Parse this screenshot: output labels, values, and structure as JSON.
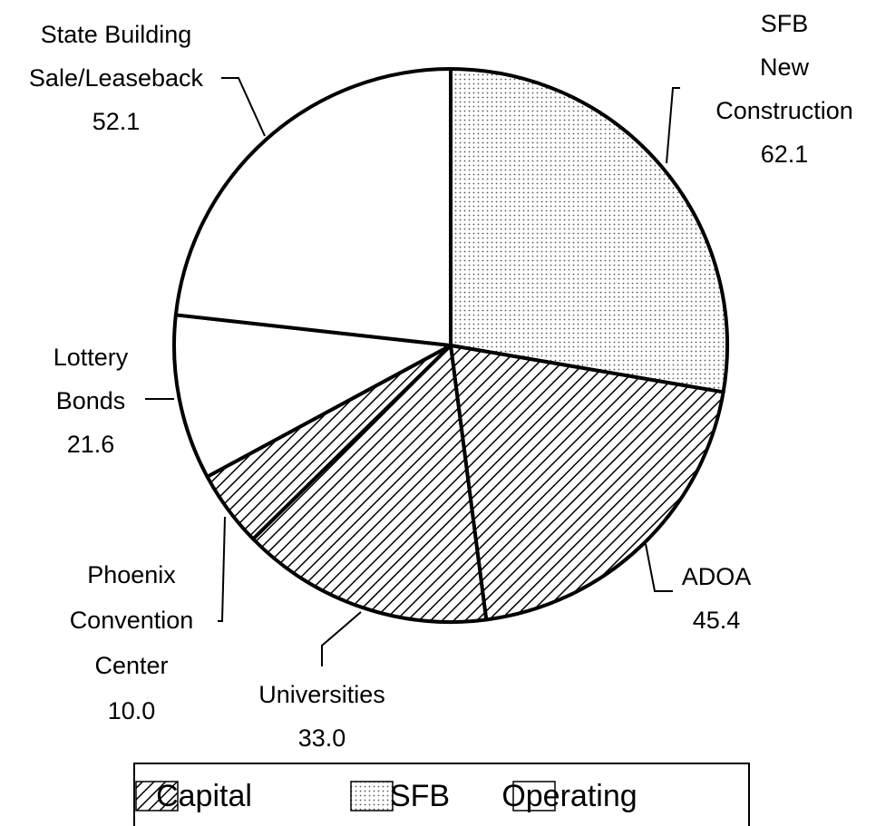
{
  "chart_data": {
    "type": "pie",
    "labels": [
      [
        "SFB",
        "New",
        "Construction"
      ],
      [
        "ADOA"
      ],
      [
        "Universities"
      ],
      [
        "Phoenix",
        "Convention",
        "Center"
      ],
      [
        "Lottery",
        "Bonds"
      ],
      [
        "State Building",
        "Sale/Leaseback"
      ]
    ],
    "values": [
      62.1,
      45.4,
      33.0,
      10.0,
      21.6,
      52.1
    ],
    "value_labels": [
      "62.1",
      "45.4",
      "33.0",
      "10.0",
      "21.6",
      "52.1"
    ],
    "slice_group": [
      1,
      0,
      0,
      0,
      2,
      2
    ],
    "groups": [
      {
        "name": "Capital",
        "pattern": "hatch"
      },
      {
        "name": "SFB",
        "pattern": "dots"
      },
      {
        "name": "Operating",
        "pattern": "none"
      }
    ],
    "start_angle": 0,
    "direction": "clockwise"
  }
}
